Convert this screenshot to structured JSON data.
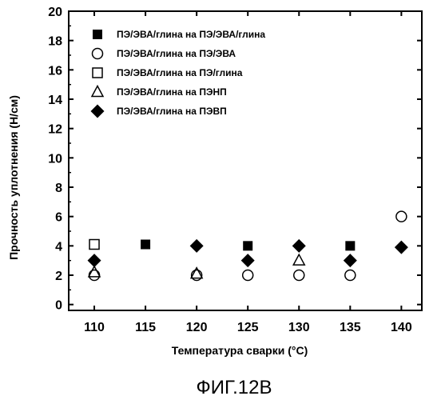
{
  "chart_data": {
    "type": "scatter",
    "title": "",
    "xlabel": "Температура сварки (°C)",
    "ylabel": "Прочность уплотнения (Н/см)",
    "xlim": [
      107.5,
      142.0
    ],
    "ylim": [
      -0.4,
      20
    ],
    "xticks": [
      110,
      115,
      120,
      125,
      130,
      135,
      140
    ],
    "yticks": [
      0,
      2,
      4,
      6,
      8,
      10,
      12,
      14,
      16,
      18,
      20
    ],
    "grid": false,
    "legend_position": "top-left",
    "series": [
      {
        "name": "ПЭ/ЭВА/глина на ПЭ/ЭВА/глина",
        "marker": "filled-square",
        "points": [
          [
            115,
            4.1
          ],
          [
            125,
            4.0
          ],
          [
            135,
            4.0
          ]
        ]
      },
      {
        "name": "ПЭ/ЭВА/глина на ПЭ/ЭВА",
        "marker": "open-circle",
        "points": [
          [
            110,
            2.0
          ],
          [
            120,
            2.0
          ],
          [
            125,
            2.0
          ],
          [
            130,
            2.0
          ],
          [
            135,
            2.0
          ],
          [
            140,
            6.0
          ]
        ]
      },
      {
        "name": "ПЭ/ЭВА/глина на ПЭ/глина",
        "marker": "open-square",
        "points": [
          [
            110,
            4.1
          ]
        ]
      },
      {
        "name": "ПЭ/ЭВА/глина на ПЭНП",
        "marker": "open-triangle",
        "points": [
          [
            110,
            2.2
          ],
          [
            120,
            2.1
          ],
          [
            130,
            3.0
          ]
        ]
      },
      {
        "name": "ПЭ/ЭВА/глина на ПЭВП",
        "marker": "filled-diamond",
        "points": [
          [
            110,
            3.0
          ],
          [
            120,
            4.0
          ],
          [
            125,
            3.0
          ],
          [
            130,
            4.0
          ],
          [
            135,
            3.0
          ],
          [
            140,
            3.9
          ]
        ]
      }
    ]
  },
  "caption": "ФИГ.12В"
}
